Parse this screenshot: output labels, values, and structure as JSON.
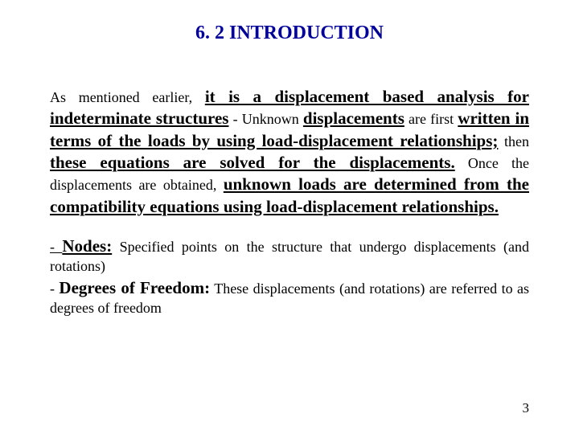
{
  "title": {
    "text": "6. 2 INTRODUCTION",
    "color": "#000099"
  },
  "p1": {
    "t1": "As mentioned earlier, ",
    "t2": "it is a displacement based analysis for indeterminate structures",
    "t3": " - ",
    "t4": "Unknown ",
    "t5": "displacements",
    "t6": " are first ",
    "t7": "written in terms of the loads by using load-displacement relationships;",
    "t8": " then ",
    "t9": "these equations are solved for the displacements.",
    "t10": " Once the displacements are obtained, ",
    "t11": "unknown loads are determined from the compatibility equations using load-displacement relationships."
  },
  "p2": {
    "dash1": "- ",
    "term1": "Nodes:",
    "def1": " Specified points on the structure that undergo displacements (and rotations)",
    "dash2": "- ",
    "term2": "Degrees of Freedom:",
    "def2": " These displacements (and rotations) are referred to as degrees of freedom"
  },
  "pageNumber": "3",
  "colors": {
    "title": "#000099",
    "text": "#000000",
    "background": "#ffffff"
  }
}
